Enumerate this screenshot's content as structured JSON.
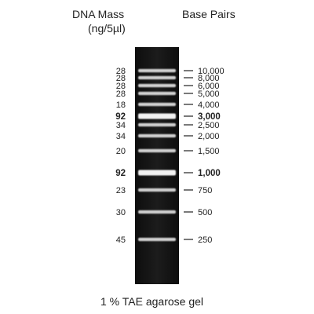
{
  "header": {
    "mass_title_line1": "DNA Mass",
    "mass_title_line2": "(ng/5µl)",
    "bp_title": "Base Pairs"
  },
  "footer": {
    "caption": "1 % TAE agarose gel"
  },
  "colors": {
    "gel_background": "#151515",
    "band": "#f2f2f2",
    "text": "#222222"
  },
  "bands": [
    {
      "mass": "28",
      "size": "10,000",
      "bold": false
    },
    {
      "mass": "28",
      "size": "8,000",
      "bold": false
    },
    {
      "mass": "28",
      "size": "6,000",
      "bold": false
    },
    {
      "mass": "28",
      "size": "5,000",
      "bold": false
    },
    {
      "mass": "18",
      "size": "4,000",
      "bold": false
    },
    {
      "mass": "92",
      "size": "3,000",
      "bold": true
    },
    {
      "mass": "34",
      "size": "2,500",
      "bold": false
    },
    {
      "mass": "34",
      "size": "2,000",
      "bold": false
    },
    {
      "mass": "20",
      "size": "1,500",
      "bold": false
    },
    {
      "mass": "92",
      "size": "1,000",
      "bold": true
    },
    {
      "mass": "23",
      "size": "750",
      "bold": false
    },
    {
      "mass": "30",
      "size": "500",
      "bold": false
    },
    {
      "mass": "45",
      "size": "250",
      "bold": false
    }
  ]
}
